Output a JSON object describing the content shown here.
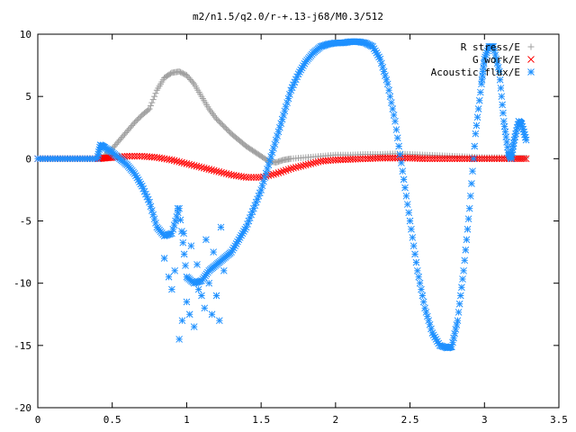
{
  "chart_data": {
    "type": "scatter",
    "title": "m2/n1.5/q2.0/r-+.13-j68/M0.3/512",
    "xlabel": "",
    "ylabel": "",
    "xlim": [
      0,
      3.5
    ],
    "ylim": [
      -20,
      10
    ],
    "grid": false,
    "legend_position": "top-right",
    "xticks": [
      0,
      0.5,
      1,
      1.5,
      2,
      2.5,
      3,
      3.5
    ],
    "xtick_labels": [
      "0",
      "0.5",
      "1",
      "1.5",
      "2",
      "2.5",
      "3",
      "3.5"
    ],
    "yticks": [
      -20,
      -15,
      -10,
      -5,
      0,
      5,
      10
    ],
    "ytick_labels": [
      "-20",
      "-15",
      "-10",
      "-5",
      "0",
      "5",
      "10"
    ],
    "series": [
      {
        "name": "R stress/E",
        "marker": "plus",
        "color": "#a0a0a0",
        "x": [
          0.45,
          0.5,
          0.55,
          0.6,
          0.65,
          0.7,
          0.75,
          0.8,
          0.85,
          0.9,
          0.95,
          1.0,
          1.05,
          1.1,
          1.15,
          1.2,
          1.25,
          1.3,
          1.35,
          1.4,
          1.45,
          1.5,
          1.55,
          1.6,
          1.65,
          1.7,
          1.8,
          1.9,
          2.0,
          2.1,
          2.2,
          2.3,
          2.4,
          2.5,
          2.6,
          2.7,
          2.8,
          2.9,
          3.0,
          3.1,
          3.2,
          3.28
        ],
        "y": [
          0.3,
          0.8,
          1.5,
          2.2,
          2.9,
          3.5,
          4.0,
          5.5,
          6.5,
          6.9,
          7.0,
          6.7,
          6.0,
          5.0,
          4.0,
          3.2,
          2.6,
          2.0,
          1.5,
          1.0,
          0.6,
          0.2,
          -0.2,
          -0.3,
          -0.1,
          0.0,
          0.1,
          0.2,
          0.3,
          0.3,
          0.35,
          0.35,
          0.4,
          0.35,
          0.3,
          0.25,
          0.2,
          0.15,
          0.1,
          0.1,
          0.05,
          0.05
        ]
      },
      {
        "name": "G work/E",
        "marker": "cross",
        "color": "#ff0000",
        "x": [
          0.0,
          0.1,
          0.2,
          0.3,
          0.4,
          0.45,
          0.5,
          0.6,
          0.7,
          0.8,
          0.9,
          1.0,
          1.1,
          1.2,
          1.3,
          1.4,
          1.5,
          1.6,
          1.7,
          1.8,
          1.9,
          2.0,
          2.1,
          2.2,
          2.3,
          2.4,
          2.5,
          2.6,
          2.7,
          2.8,
          2.9,
          3.0,
          3.1,
          3.2,
          3.28
        ],
        "y": [
          0.0,
          0.0,
          0.0,
          0.0,
          0.0,
          0.05,
          0.1,
          0.2,
          0.2,
          0.1,
          -0.1,
          -0.4,
          -0.7,
          -1.0,
          -1.3,
          -1.5,
          -1.5,
          -1.2,
          -0.8,
          -0.5,
          -0.2,
          -0.1,
          -0.05,
          0.0,
          0.05,
          0.05,
          0.05,
          0.0,
          0.0,
          0.0,
          0.0,
          0.0,
          0.0,
          0.0,
          0.0
        ]
      },
      {
        "name": "Acoustic flux/E",
        "marker": "star",
        "color": "#1e90ff",
        "x": [
          0.0,
          0.1,
          0.2,
          0.3,
          0.4,
          0.42,
          0.45,
          0.5,
          0.55,
          0.6,
          0.65,
          0.7,
          0.75,
          0.8,
          0.85,
          0.9,
          0.95,
          1.0,
          1.05,
          1.1,
          1.15,
          1.2,
          1.25,
          1.3,
          1.35,
          1.4,
          1.45,
          1.5,
          1.55,
          1.6,
          1.65,
          1.7,
          1.75,
          1.8,
          1.85,
          1.9,
          1.95,
          2.0,
          2.05,
          2.1,
          2.15,
          2.2,
          2.25,
          2.3,
          2.35,
          2.4,
          2.45,
          2.5,
          2.55,
          2.6,
          2.65,
          2.7,
          2.75,
          2.78,
          2.82,
          2.86,
          2.9,
          2.94,
          2.98,
          3.0,
          3.03,
          3.06,
          3.1,
          3.13,
          3.16,
          3.18,
          3.2,
          3.23,
          3.25,
          3.28
        ],
        "y": [
          0.0,
          0.0,
          0.0,
          0.0,
          0.0,
          1.1,
          0.9,
          0.5,
          0.0,
          -0.5,
          -1.2,
          -2.2,
          -3.5,
          -5.5,
          -6.2,
          -6.0,
          -4.0,
          -9.5,
          -10.0,
          -9.8,
          -9.0,
          -8.5,
          -8.0,
          -7.5,
          -6.5,
          -5.5,
          -4.0,
          -2.5,
          -0.5,
          1.5,
          3.5,
          5.5,
          6.8,
          7.8,
          8.5,
          9.0,
          9.2,
          9.3,
          9.3,
          9.4,
          9.4,
          9.3,
          9.0,
          8.0,
          6.0,
          3.0,
          -1.0,
          -5.0,
          -9.0,
          -12.0,
          -14.0,
          -15.0,
          -15.2,
          -15.1,
          -13.0,
          -9.0,
          -4.0,
          2.0,
          6.0,
          8.0,
          9.0,
          9.0,
          7.0,
          3.0,
          0.5,
          0.0,
          1.5,
          3.0,
          2.8,
          1.5
        ]
      },
      {
        "name": "Acoustic flux/E (scattered)",
        "marker": "star",
        "color": "#1e90ff",
        "legend": false,
        "x": [
          0.85,
          0.88,
          0.9,
          0.92,
          0.95,
          0.97,
          1.0,
          1.02,
          1.05,
          1.08,
          1.1,
          1.12,
          1.15,
          1.17,
          1.2,
          1.22,
          1.25,
          0.94,
          0.98,
          1.03,
          1.07,
          1.13,
          1.18,
          1.23
        ],
        "y": [
          -8.0,
          -9.5,
          -10.5,
          -9.0,
          -14.5,
          -13.0,
          -11.5,
          -12.5,
          -13.5,
          -10.5,
          -11.0,
          -12.0,
          -10.0,
          -12.5,
          -11.0,
          -13.0,
          -9.0,
          -4.0,
          -6.0,
          -7.0,
          -8.5,
          -6.5,
          -7.5,
          -5.5
        ]
      }
    ]
  }
}
